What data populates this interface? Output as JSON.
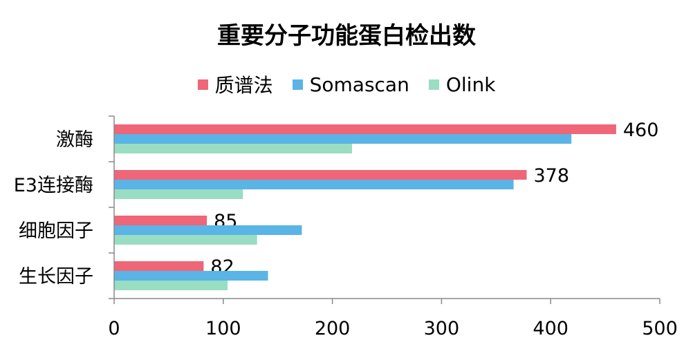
{
  "chart_data": {
    "type": "bar",
    "orientation": "horizontal",
    "title": "重要分子功能蛋白检出数",
    "categories": [
      "激酶",
      "E3连接酶",
      "细胞因子",
      "生长因子"
    ],
    "series": [
      {
        "name": "质谱法",
        "color": "#EE6677",
        "values": [
          460,
          378,
          85,
          82
        ],
        "labels": [
          "460",
          "378",
          "85",
          "82"
        ]
      },
      {
        "name": "Somascan",
        "color": "#5AB4E5",
        "values": [
          419,
          366,
          172,
          141
        ]
      },
      {
        "name": "Olink",
        "color": "#99DDC3",
        "values": [
          218,
          118,
          131,
          104
        ]
      }
    ],
    "xlim": [
      0,
      500
    ],
    "xticks": [
      "0",
      "100",
      "200",
      "300",
      "400",
      "500"
    ],
    "legend": "top",
    "grid": false
  }
}
